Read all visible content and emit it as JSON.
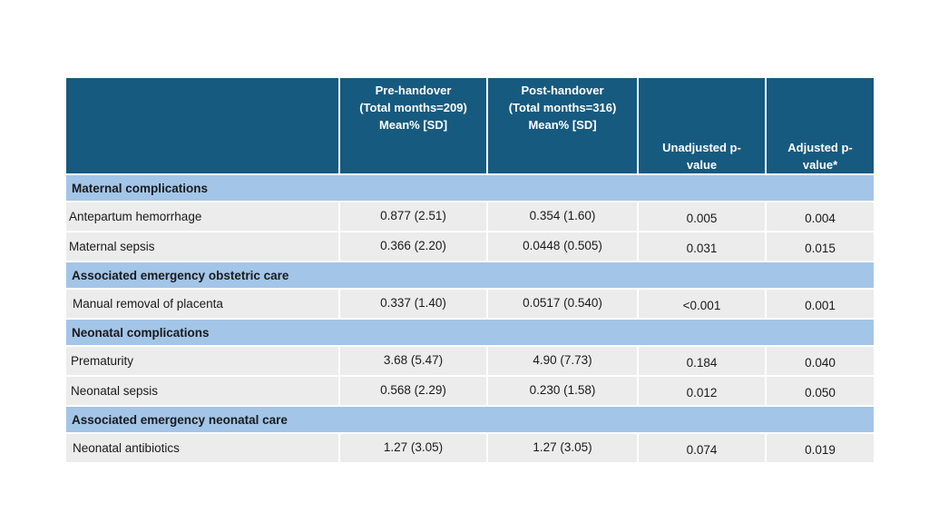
{
  "headers": {
    "pre": [
      "Pre-handover",
      "(Total months=209)",
      "Mean% [SD]"
    ],
    "post": [
      "Post-handover",
      "(Total months=316)",
      "Mean% [SD]"
    ],
    "unadjusted": [
      "Unadjusted p-",
      "value"
    ],
    "adjusted": [
      "Adjusted p-",
      "value*"
    ]
  },
  "sections": [
    {
      "title": "Maternal complications",
      "rows": [
        {
          "label": "Antepartum hemorrhage",
          "pre": "0.877 (2.51)",
          "post": "0.354 (1.60)",
          "unadj": "0.005",
          "adj": "0.004"
        },
        {
          "label": "Maternal sepsis",
          "pre": "0.366 (2.20)",
          "post": "0.0448 (0.505)",
          "unadj": "0.031",
          "adj": "0.015"
        }
      ]
    },
    {
      "title": "Associated emergency obstetric care",
      "rows": [
        {
          "label": "Manual removal of placenta",
          "pre": "0.337 (1.40)",
          "post": "0.0517 (0.540)",
          "unadj": "<0.001",
          "adj": "0.001"
        }
      ]
    },
    {
      "title": "Neonatal complications",
      "rows": [
        {
          "label": "Prematurity",
          "pre": "3.68 (5.47)",
          "post": "4.90 (7.73)",
          "unadj": "0.184",
          "adj": "0.040"
        },
        {
          "label": "Neonatal sepsis",
          "pre": "0.568 (2.29)",
          "post": "0.230 (1.58)",
          "unadj": "0.012",
          "adj": "0.050"
        }
      ]
    },
    {
      "title": "Associated emergency neonatal care",
      "rows": [
        {
          "label": "Neonatal antibiotics",
          "pre": "1.27 (3.05)",
          "post": "1.27 (3.05)",
          "unadj": "0.074",
          "adj": "0.019"
        }
      ]
    }
  ],
  "colors": {
    "header_bg": "#175a7f",
    "section_bg": "#a3c5e8",
    "row_bg": "#ececec"
  }
}
